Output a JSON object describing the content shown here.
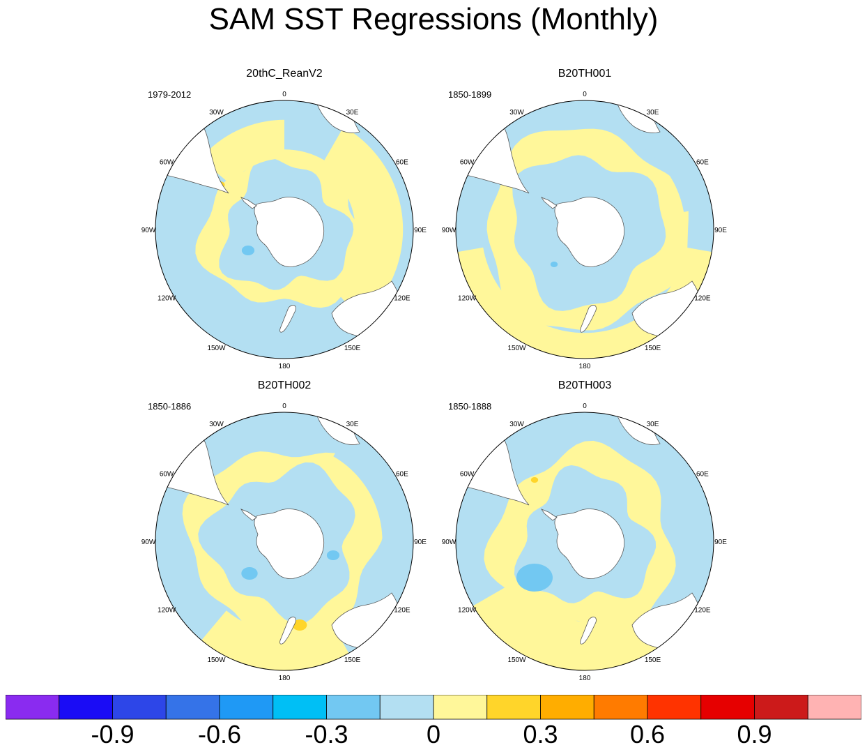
{
  "title": "SAM SST Regressions (Monthly)",
  "chart_data": {
    "type": "heatmap",
    "projection": "south-polar-stereographic",
    "variable": "SST regression on SAM index",
    "panels": [
      {
        "title": "20thC_ReanV2",
        "period": "1979-2012"
      },
      {
        "title": "B20TH001",
        "period": "1850-1899"
      },
      {
        "title": "B20TH002",
        "period": "1850-1886"
      },
      {
        "title": "B20TH003",
        "period": "1850-1888"
      }
    ],
    "longitude_labels": [
      "0",
      "30E",
      "60E",
      "90E",
      "120E",
      "150E",
      "180",
      "150W",
      "120W",
      "90W",
      "60W",
      "30W"
    ],
    "colorbar": {
      "levels": [
        -1.05,
        -0.9,
        -0.75,
        -0.6,
        -0.45,
        -0.3,
        -0.15,
        0,
        0.15,
        0.3,
        0.45,
        0.6,
        0.75,
        0.9,
        1.05
      ],
      "colors": [
        "#8a2bf0",
        "#1a0cf5",
        "#2d46e8",
        "#3573e8",
        "#1f99f5",
        "#00bff5",
        "#72c8f2",
        "#b3dff2",
        "#fff79a",
        "#ffd52a",
        "#ffad00",
        "#ff7b00",
        "#ff3300",
        "#e60000",
        "#cc1a1a",
        "#ffb3b3"
      ],
      "tick_labels": [
        "-0.9",
        "-0.6",
        "-0.3",
        "0",
        "0.3",
        "0.6",
        "0.9"
      ],
      "tick_values": [
        -0.9,
        -0.6,
        -0.3,
        0,
        0.3,
        0.6,
        0.9
      ]
    }
  }
}
